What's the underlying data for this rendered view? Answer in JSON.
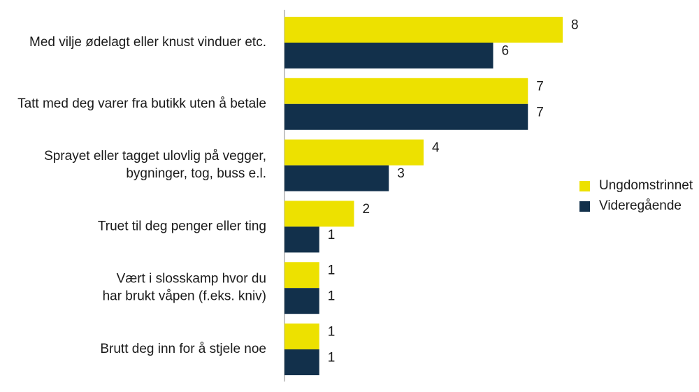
{
  "chart_data": {
    "type": "bar",
    "orientation": "horizontal",
    "categories": [
      [
        "Med vilje ødelagt eller knust vinduer etc."
      ],
      [
        "Tatt med deg varer fra butikk uten å betale"
      ],
      [
        "Sprayet eller tagget ulovlig på vegger,",
        "bygninger, tog, buss e.l."
      ],
      [
        "Truet til deg penger eller ting"
      ],
      [
        "Vært i slosskamp hvor du",
        "har brukt våpen (f.eks. kniv)"
      ],
      [
        "Brutt deg inn for å stjele noe"
      ]
    ],
    "series": [
      {
        "name": "Ungdomstrinnet",
        "color": "#ede100",
        "values": [
          8,
          7,
          4,
          2,
          1,
          1
        ]
      },
      {
        "name": "Videregående",
        "color": "#12304b",
        "values": [
          6,
          7,
          3,
          1,
          1,
          1
        ]
      }
    ],
    "xlim": [
      0,
      8.7
    ],
    "grid": false,
    "legend_position": "right"
  }
}
